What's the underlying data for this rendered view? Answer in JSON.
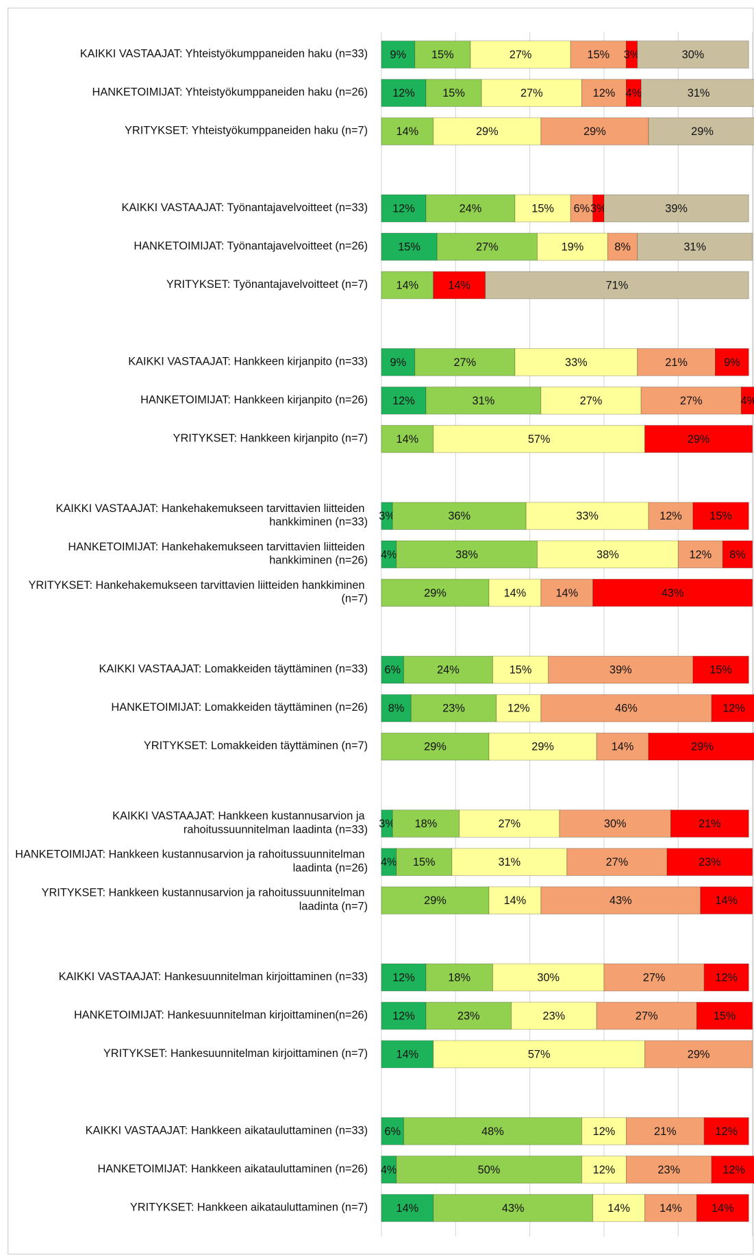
{
  "chart_data": {
    "type": "stacked-bar-horizontal",
    "categories": [
      "KAIKKI VASTAAJAT: Yhteistyökumppaneiden haku (n=33)",
      "HANKETOIMIJAT: Yhteistyökumppaneiden haku (n=26)",
      "YRITYKSET: Yhteistyökumppaneiden haku (n=7)",
      "KAIKKI VASTAAJAT: Työnantajavelvoitteet (n=33)",
      "HANKETOIMIJAT: Työnantajavelvoitteet (n=26)",
      "YRITYKSET: Työnantajavelvoitteet (n=7)",
      "KAIKKI VASTAAJAT: Hankkeen kirjanpito (n=33)",
      "HANKETOIMIJAT: Hankkeen kirjanpito (n=26)",
      "YRITYKSET: Hankkeen kirjanpito (n=7)",
      "KAIKKI VASTAAJAT: Hankehakemukseen tarvittavien liitteiden hankkiminen (n=33)",
      "HANKETOIMIJAT: Hankehakemukseen tarvittavien liitteiden hankkiminen (n=26)",
      "YRITYKSET: Hankehakemukseen tarvittavien liitteiden hankkiminen (n=7)",
      "KAIKKI VASTAAJAT: Lomakkeiden täyttäminen (n=33)",
      "HANKETOIMIJAT: Lomakkeiden täyttäminen (n=26)",
      "YRITYKSET: Lomakkeiden täyttäminen (n=7)",
      "KAIKKI VASTAAJAT: Hankkeen kustannusarvion ja rahoitussuunnitelman laadinta (n=33)",
      "HANKETOIMIJAT: Hankkeen kustannusarvion ja rahoitussuunnitelman laadinta (n=26)",
      "YRITYKSET: Hankkeen kustannusarvion ja rahoitussuunnitelman laadinta (n=7)",
      "KAIKKI VASTAAJAT: Hankesuunnitelman kirjoittaminen (n=33)",
      "HANKETOIMIJAT: Hankesuunnitelman kirjoittaminen(n=26)",
      "YRITYKSET: Hankesuunnitelman kirjoittaminen (n=7)",
      "KAIKKI VASTAAJAT: Hankkeen aikatauluttaminen (n=33)",
      "HANKETOIMIJAT: Hankkeen aikatauluttaminen (n=26)",
      "YRITYKSET: Hankkeen aikatauluttaminen (n=7)"
    ],
    "series": [
      {
        "color": "#1db35a",
        "values": [
          9,
          12,
          null,
          12,
          15,
          null,
          9,
          12,
          null,
          3,
          4,
          null,
          6,
          8,
          null,
          3,
          4,
          null,
          12,
          12,
          14,
          6,
          4,
          14
        ],
        "value_labels": [
          "9%",
          "12%",
          null,
          "12%",
          "15%",
          null,
          "9%",
          "12%",
          null,
          "3%",
          "4%",
          null,
          "6%",
          "8%",
          null,
          "3%",
          "4%",
          null,
          "12%",
          "12%",
          "14%",
          "6%",
          "4%",
          "14%"
        ]
      },
      {
        "color": "#92d050",
        "values": [
          15,
          15,
          14,
          24,
          27,
          14,
          27,
          31,
          14,
          36,
          38,
          29,
          24,
          23,
          29,
          18,
          15,
          29,
          18,
          23,
          null,
          48,
          50,
          43
        ],
        "value_labels": [
          "15%",
          "15%",
          "14%",
          "24%",
          "27%",
          "14%",
          "27%",
          "31%",
          "14%",
          "36%",
          "38%",
          "29%",
          "24%",
          "23%",
          "29%",
          "18%",
          "15%",
          "29%",
          "18%",
          "23%",
          null,
          "48%",
          "50%",
          "43%"
        ]
      },
      {
        "color": "#ffff99",
        "values": [
          27,
          27,
          29,
          15,
          19,
          null,
          33,
          27,
          57,
          33,
          38,
          14,
          15,
          12,
          29,
          27,
          31,
          14,
          30,
          23,
          57,
          12,
          12,
          14
        ],
        "value_labels": [
          "27%",
          "27%",
          "29%",
          "15%",
          "19%",
          null,
          "33%",
          "27%",
          "57%",
          "33%",
          "38%",
          "14%",
          "15%",
          "12%",
          "29%",
          "27%",
          "31%",
          "14%",
          "30%",
          "23%",
          "57%",
          "12%",
          "12%",
          "14%"
        ]
      },
      {
        "color": "#f4a070",
        "values": [
          15,
          12,
          29,
          6,
          8,
          null,
          21,
          27,
          null,
          12,
          12,
          14,
          39,
          46,
          14,
          30,
          27,
          43,
          27,
          27,
          29,
          21,
          23,
          14
        ],
        "value_labels": [
          "15%",
          "12%",
          "29%",
          "6%",
          "8%",
          null,
          "21%",
          "27%",
          null,
          "12%",
          "12%",
          "14%",
          "39%",
          "46%",
          "14%",
          "30%",
          "27%",
          "43%",
          "27%",
          "27%",
          "29%",
          "21%",
          "23%",
          "14%"
        ]
      },
      {
        "color": "#ff0000",
        "values": [
          3,
          4,
          null,
          3,
          null,
          14,
          9,
          4,
          29,
          15,
          8,
          43,
          15,
          12,
          29,
          21,
          23,
          14,
          12,
          15,
          null,
          12,
          12,
          14
        ],
        "value_labels": [
          "3%",
          "4%",
          null,
          "3%",
          null,
          "14%",
          "9%",
          "4%",
          "29%",
          "15%",
          "8%",
          "43%",
          "15%",
          "12%",
          "29%",
          "21%",
          "23%",
          "14%",
          "12%",
          "15%",
          null,
          "12%",
          "12%",
          "14%"
        ]
      },
      {
        "color": "#c9bf9f",
        "values": [
          30,
          31,
          29,
          39,
          31,
          71,
          null,
          null,
          null,
          null,
          null,
          null,
          null,
          null,
          null,
          null,
          null,
          null,
          null,
          null,
          null,
          null,
          null,
          null
        ],
        "value_labels": [
          "30%",
          "31%",
          "29%",
          "39%",
          "31%",
          "71%",
          null,
          null,
          null,
          null,
          null,
          null,
          null,
          null,
          null,
          null,
          null,
          null,
          null,
          null,
          null,
          null,
          null,
          null
        ]
      }
    ],
    "xlim": [
      0,
      100
    ],
    "xticks": [
      0,
      20,
      40,
      60,
      80,
      100
    ],
    "grid": true
  }
}
